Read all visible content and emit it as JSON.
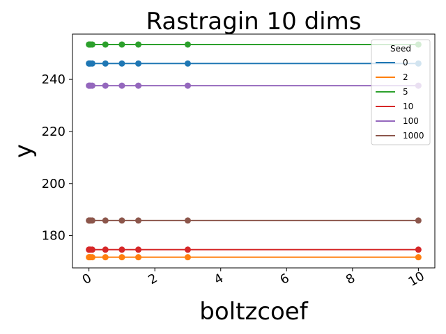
{
  "chart_data": {
    "type": "line",
    "title": "Rastragin 10 dims",
    "xlabel": "boltzcoef",
    "ylabel": "y",
    "x": [
      0,
      0.01,
      0.05,
      0.1,
      0.5,
      1,
      1.5,
      3,
      10
    ],
    "xlim": [
      -0.5,
      10.5
    ],
    "ylim": [
      167.6,
      257.4
    ],
    "xticks": [
      0,
      2,
      4,
      6,
      8,
      10
    ],
    "yticks": [
      180,
      200,
      220,
      240
    ],
    "xtick_labels": [
      "0",
      "2",
      "4",
      "6",
      "8",
      "10"
    ],
    "ytick_labels": [
      "180",
      "200",
      "220",
      "240"
    ],
    "grid": false,
    "legend": {
      "title": "Seed",
      "placement": "top-right"
    },
    "series": [
      {
        "name": "0",
        "color": "#1f77b4",
        "values": [
          246.1,
          246.1,
          246.1,
          246.1,
          246.1,
          246.1,
          246.1,
          246.1,
          246.1
        ]
      },
      {
        "name": "2",
        "color": "#ff7f0e",
        "values": [
          171.7,
          171.7,
          171.7,
          171.7,
          171.7,
          171.7,
          171.7,
          171.7,
          171.7
        ]
      },
      {
        "name": "5",
        "color": "#2ca02c",
        "values": [
          253.4,
          253.4,
          253.4,
          253.4,
          253.4,
          253.4,
          253.4,
          253.4,
          253.4
        ]
      },
      {
        "name": "10",
        "color": "#d62728",
        "values": [
          174.6,
          174.6,
          174.6,
          174.6,
          174.6,
          174.6,
          174.6,
          174.6,
          174.6
        ]
      },
      {
        "name": "100",
        "color": "#9467bd",
        "values": [
          237.6,
          237.6,
          237.6,
          237.6,
          237.6,
          237.6,
          237.6,
          237.6,
          237.6
        ]
      },
      {
        "name": "1000",
        "color": "#8c564b",
        "values": [
          185.8,
          185.8,
          185.8,
          185.8,
          185.8,
          185.8,
          185.8,
          185.8,
          185.8
        ]
      }
    ]
  }
}
